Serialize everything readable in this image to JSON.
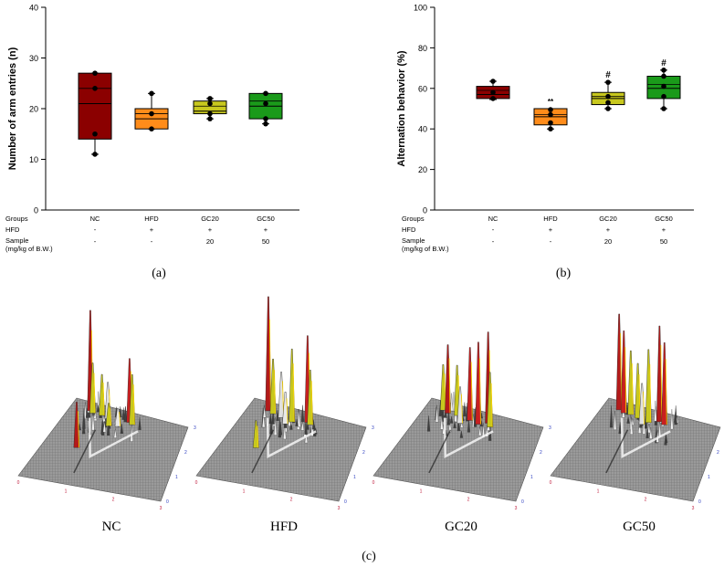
{
  "chart_data": [
    {
      "type": "boxplot",
      "panel_label": "(a)",
      "ylabel": "Number of arm entries (n)",
      "ylim": [
        0,
        40
      ],
      "yticks": [
        0,
        10,
        20,
        30,
        40
      ],
      "categories": [
        "NC",
        "HFD",
        "GC20",
        "GC50"
      ],
      "row_labels": [
        "Groups",
        "HFD",
        "Sample",
        "(mg/kg of B.W.)"
      ],
      "hfd_row": [
        "-",
        "+",
        "+",
        "+"
      ],
      "sample_row": [
        "-",
        "-",
        "20",
        "50"
      ],
      "colors": [
        "#8b0000",
        "#ff8c1a",
        "#c8c81e",
        "#1a9a1a"
      ],
      "boxes": [
        {
          "q1": 14,
          "median": 21,
          "mean": 24,
          "q3": 27,
          "min": 11,
          "max": 27,
          "points": [
            27,
            24,
            15,
            11
          ]
        },
        {
          "q1": 16,
          "median": 18,
          "mean": 19,
          "q3": 20,
          "min": 16,
          "max": 23,
          "points": [
            23,
            19,
            16
          ]
        },
        {
          "q1": 19,
          "median": 19.5,
          "mean": 20.5,
          "q3": 21.5,
          "min": 18,
          "max": 22,
          "points": [
            22,
            21,
            19,
            18
          ]
        },
        {
          "q1": 18,
          "median": 20.5,
          "mean": 21.5,
          "q3": 23,
          "min": 17,
          "max": 23,
          "points": [
            23,
            21,
            18,
            17
          ]
        }
      ],
      "annotations": [
        "",
        "",
        "",
        ""
      ]
    },
    {
      "type": "boxplot",
      "panel_label": "(b)",
      "ylabel": "Alternation behavior (%)",
      "ylim": [
        0,
        100
      ],
      "yticks": [
        0,
        20,
        40,
        60,
        80,
        100
      ],
      "categories": [
        "NC",
        "HFD",
        "GC20",
        "GC50"
      ],
      "row_labels": [
        "Groups",
        "HFD",
        "Sample",
        "(mg/kg of B.W.)"
      ],
      "hfd_row": [
        "-",
        "+",
        "+",
        "+"
      ],
      "sample_row": [
        "-",
        "-",
        "20",
        "50"
      ],
      "colors": [
        "#8b0000",
        "#ff8c1a",
        "#c8c81e",
        "#1a9a1a"
      ],
      "boxes": [
        {
          "q1": 55,
          "median": 57,
          "mean": 59,
          "q3": 61,
          "min": 54.5,
          "max": 63.5,
          "points": [
            63.5,
            58,
            55
          ]
        },
        {
          "q1": 42,
          "median": 46,
          "mean": 47,
          "q3": 50,
          "min": 40,
          "max": 50,
          "points": [
            49.5,
            47,
            43,
            40
          ]
        },
        {
          "q1": 52,
          "median": 55,
          "mean": 56,
          "q3": 58,
          "min": 50,
          "max": 63,
          "points": [
            63,
            56,
            53,
            50
          ]
        },
        {
          "q1": 55,
          "median": 60,
          "mean": 62,
          "q3": 66,
          "min": 50,
          "max": 69,
          "points": [
            69,
            66,
            61,
            56,
            50
          ]
        }
      ],
      "annotations": [
        "",
        "**",
        "#",
        "#"
      ]
    },
    {
      "type": "surface3d",
      "panel_label": "(c)",
      "groups": [
        "NC",
        "HFD",
        "GC20",
        "GC50"
      ],
      "x_ticks": [
        "0",
        "1",
        "2",
        "3"
      ],
      "y_ticks": [
        "0",
        "1",
        "2",
        "3"
      ]
    }
  ]
}
